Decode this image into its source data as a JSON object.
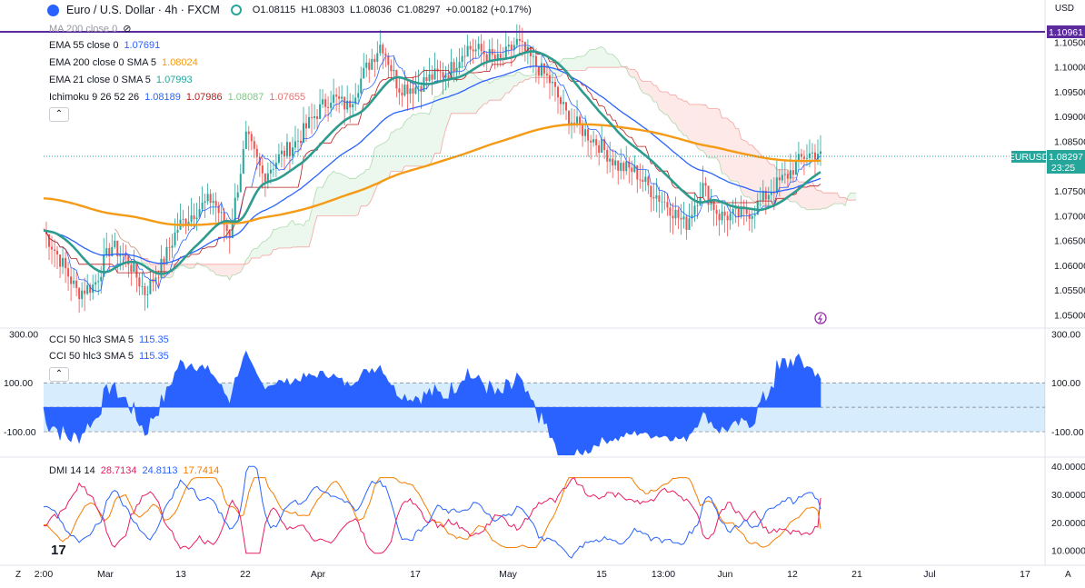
{
  "header": {
    "symbol": "Euro / U.S. Dollar · 4h · FXCM",
    "open": "O1.08115",
    "high": "H1.08303",
    "low": "L1.08036",
    "close": "C1.08297",
    "change": "+0.00182 (+0.17%)"
  },
  "currency": "USD",
  "legend": {
    "ma200": "MA 200 close 0",
    "ema55": {
      "label": "EMA 55 close 0",
      "value": "1.07691"
    },
    "ema200": {
      "label": "EMA 200 close 0 SMA 5",
      "value": "1.08024"
    },
    "ema21": {
      "label": "EMA 21 close 0 SMA 5",
      "value": "1.07993"
    },
    "ichimoku": {
      "label": "Ichimoku 9 26 52 26",
      "v1": "1.08189",
      "v2": "1.07986",
      "v3": "1.08087",
      "v4": "1.07655"
    },
    "cci1": {
      "label": "CCI 50 hlc3 SMA 5",
      "value": "115.35"
    },
    "cci2": {
      "label": "CCI 50 hlc3 SMA 5",
      "value": "115.35"
    },
    "dmi": {
      "label": "DMI 14 14",
      "v1": "28.7134",
      "v2": "24.8113",
      "v3": "17.7414"
    }
  },
  "price_labels": {
    "hline": "1.10961",
    "ticker": "EURUSD",
    "last": "1.08297",
    "countdown": "23:25"
  },
  "colors": {
    "up": "#26a69a",
    "down": "#ef5350",
    "ema55": "#2962ff",
    "ema200": "#f59a14",
    "ema21": "#2e9b8f",
    "cci": "#2962ff",
    "dmi_plus": "#2962ff",
    "dmi_minus": "#e91e63",
    "adx": "#f57c00",
    "hline": "#5b2a9d"
  },
  "chart_data": [
    {
      "type": "candlestick",
      "title": "Euro / U.S. Dollar · 4h · FXCM",
      "yaxis_ticks": [
        "1.10500",
        "1.10000",
        "1.09500",
        "1.09000",
        "1.08500",
        "1.08000",
        "1.07500",
        "1.07000",
        "1.06500",
        "1.06000",
        "1.05500",
        "1.05000"
      ],
      "ylim": [
        1.0475,
        1.1135
      ],
      "xaxis_ticks": [
        "2:00",
        "Mar",
        "13",
        "22",
        "Apr",
        "17",
        "May",
        "15",
        "13:00",
        "Jun",
        "12",
        "21",
        "Jul",
        "17"
      ],
      "horizontal_line": 1.10961,
      "close_path": [
        {
          "x": "Feb 28",
          "y": 1.067
        },
        {
          "x": "Mar 3",
          "y": 1.061
        },
        {
          "x": "Mar 6",
          "y": 1.0545
        },
        {
          "x": "Mar 8",
          "y": 1.056
        },
        {
          "x": "Mar 10",
          "y": 1.064
        },
        {
          "x": "Mar 13",
          "y": 1.061
        },
        {
          "x": "Mar 14",
          "y": 1.0545
        },
        {
          "x": "Mar 16",
          "y": 1.06
        },
        {
          "x": "Mar 17",
          "y": 1.068
        },
        {
          "x": "Mar 20",
          "y": 1.071
        },
        {
          "x": "Mar 21",
          "y": 1.0735
        },
        {
          "x": "Mar 22",
          "y": 1.066
        },
        {
          "x": "Mar 23",
          "y": 1.086
        },
        {
          "x": "Mar 24",
          "y": 1.078
        },
        {
          "x": "Mar 27",
          "y": 1.082
        },
        {
          "x": "Mar 30",
          "y": 1.085
        },
        {
          "x": "Apr 3",
          "y": 1.09
        },
        {
          "x": "Apr 5",
          "y": 1.094
        },
        {
          "x": "Apr 10",
          "y": 1.092
        },
        {
          "x": "Apr 12",
          "y": 1.099
        },
        {
          "x": "Apr 14",
          "y": 1.105
        },
        {
          "x": "Apr 17",
          "y": 1.096
        },
        {
          "x": "Apr 19",
          "y": 1.096
        },
        {
          "x": "Apr 21",
          "y": 1.098
        },
        {
          "x": "Apr 24",
          "y": 1.099
        },
        {
          "x": "Apr 26",
          "y": 1.104
        },
        {
          "x": "Apr 28",
          "y": 1.103
        },
        {
          "x": "May 2",
          "y": 1.101
        },
        {
          "x": "May 4",
          "y": 1.105
        },
        {
          "x": "May 8",
          "y": 1.101
        },
        {
          "x": "May 10",
          "y": 1.097
        },
        {
          "x": "May 12",
          "y": 1.09
        },
        {
          "x": "May 15",
          "y": 1.087
        },
        {
          "x": "May 17",
          "y": 1.084
        },
        {
          "x": "May 19",
          "y": 1.08
        },
        {
          "x": "May 22",
          "y": 1.079
        },
        {
          "x": "May 24",
          "y": 1.075
        },
        {
          "x": "May 26",
          "y": 1.072
        },
        {
          "x": "May 30",
          "y": 1.068
        },
        {
          "x": "Jun 1",
          "y": 1.076
        },
        {
          "x": "Jun 2",
          "y": 1.07
        },
        {
          "x": "Jun 5",
          "y": 1.07
        },
        {
          "x": "Jun 7",
          "y": 1.071
        },
        {
          "x": "Jun 9",
          "y": 1.075
        },
        {
          "x": "Jun 12",
          "y": 1.078
        },
        {
          "x": "Jun 14",
          "y": 1.082
        },
        {
          "x": "Jun 15",
          "y": 1.083
        }
      ],
      "series": [
        {
          "name": "EMA 55 close 0",
          "last": 1.07691
        },
        {
          "name": "EMA 200 close 0 SMA 5",
          "last": 1.08024
        },
        {
          "name": "EMA 21 close 0 SMA 5",
          "last": 1.07993
        }
      ]
    },
    {
      "type": "area",
      "title": "CCI 50 hlc3 SMA 5",
      "yaxis_ticks": [
        "300.00",
        "100.00",
        "-100.00"
      ],
      "ylim": [
        -200,
        320
      ],
      "band": [
        -100,
        100
      ],
      "last": 115.35
    },
    {
      "type": "line",
      "title": "DMI 14 14",
      "yaxis_ticks": [
        "40.0000",
        "30.0000",
        "20.0000",
        "10.0000"
      ],
      "ylim": [
        5,
        43
      ],
      "series": [
        {
          "name": "+DI",
          "last": 24.8113
        },
        {
          "name": "-DI",
          "last": 28.7134
        },
        {
          "name": "ADX",
          "last": 17.7414
        }
      ]
    }
  ]
}
